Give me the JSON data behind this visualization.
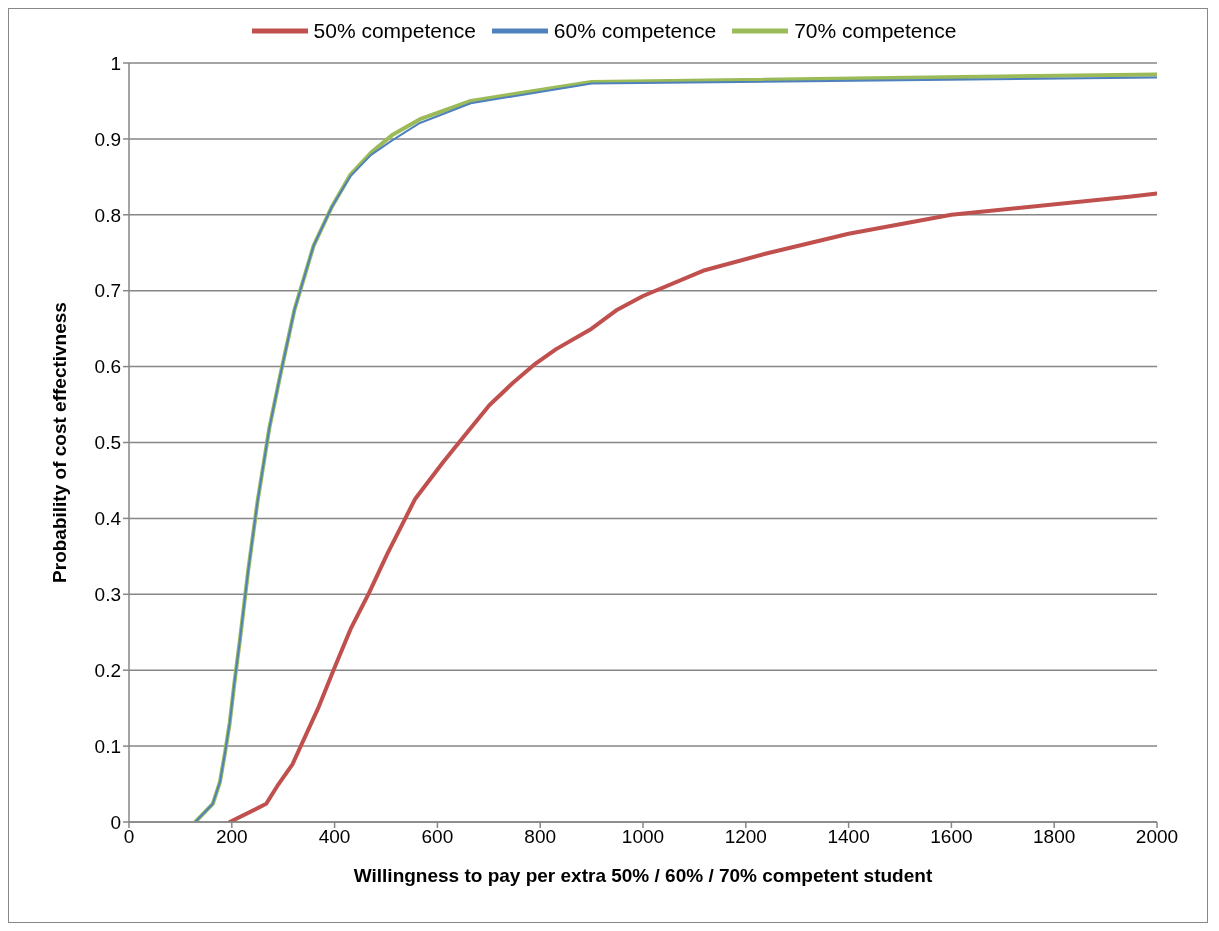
{
  "chart_data": {
    "type": "line",
    "xlabel": "Willingness to pay per extra 50% / 60% / 70% competent student",
    "ylabel": "Probability of cost effectivness",
    "xlim": [
      0,
      2000
    ],
    "xticks": [
      0,
      200,
      400,
      600,
      800,
      1000,
      1200,
      1400,
      1600,
      1800,
      2000
    ],
    "ylim": [
      0,
      1
    ],
    "yticks": [
      0,
      0.1,
      0.2,
      0.3,
      0.4,
      0.5,
      0.6,
      0.7,
      0.8,
      0.9,
      1
    ],
    "grid": "y",
    "legend": "top",
    "marker": "none",
    "line_style": "solid",
    "series": [
      {
        "name": "50% competence",
        "color": "#c0504d",
        "x": [
          196,
          267,
          291,
          318,
          368,
          399,
          431,
          467,
          503,
          557,
          611,
          642,
          701,
          746,
          791,
          831,
          900,
          950,
          1000,
          1120,
          1240,
          1400,
          1600,
          1950,
          2000
        ],
        "values": [
          0,
          0.024,
          0.05,
          0.076,
          0.15,
          0.202,
          0.254,
          0.302,
          0.354,
          0.426,
          0.474,
          0.5,
          0.549,
          0.578,
          0.604,
          0.623,
          0.65,
          0.675,
          0.693,
          0.727,
          0.749,
          0.775,
          0.8,
          0.824,
          0.828
        ]
      },
      {
        "name": "60% competence",
        "color": "#4f81bd",
        "x": [
          129,
          163,
          177,
          187,
          196,
          205,
          216,
          232,
          250,
          273,
          295,
          322,
          359,
          395,
          431,
          471,
          512,
          566,
          665,
          900,
          2000
        ],
        "values": [
          0,
          0.024,
          0.053,
          0.092,
          0.131,
          0.183,
          0.241,
          0.332,
          0.422,
          0.519,
          0.591,
          0.675,
          0.759,
          0.811,
          0.851,
          0.879,
          0.898,
          0.921,
          0.947,
          0.973,
          0.981
        ]
      },
      {
        "name": "70% competence",
        "color": "#9bbb59",
        "x": [
          129,
          163,
          177,
          187,
          196,
          205,
          216,
          232,
          250,
          273,
          295,
          322,
          359,
          395,
          431,
          471,
          512,
          566,
          665,
          900,
          2000
        ],
        "values": [
          0,
          0.024,
          0.053,
          0.092,
          0.131,
          0.183,
          0.241,
          0.332,
          0.422,
          0.519,
          0.591,
          0.675,
          0.759,
          0.811,
          0.853,
          0.882,
          0.905,
          0.926,
          0.95,
          0.975,
          0.985
        ]
      }
    ]
  }
}
